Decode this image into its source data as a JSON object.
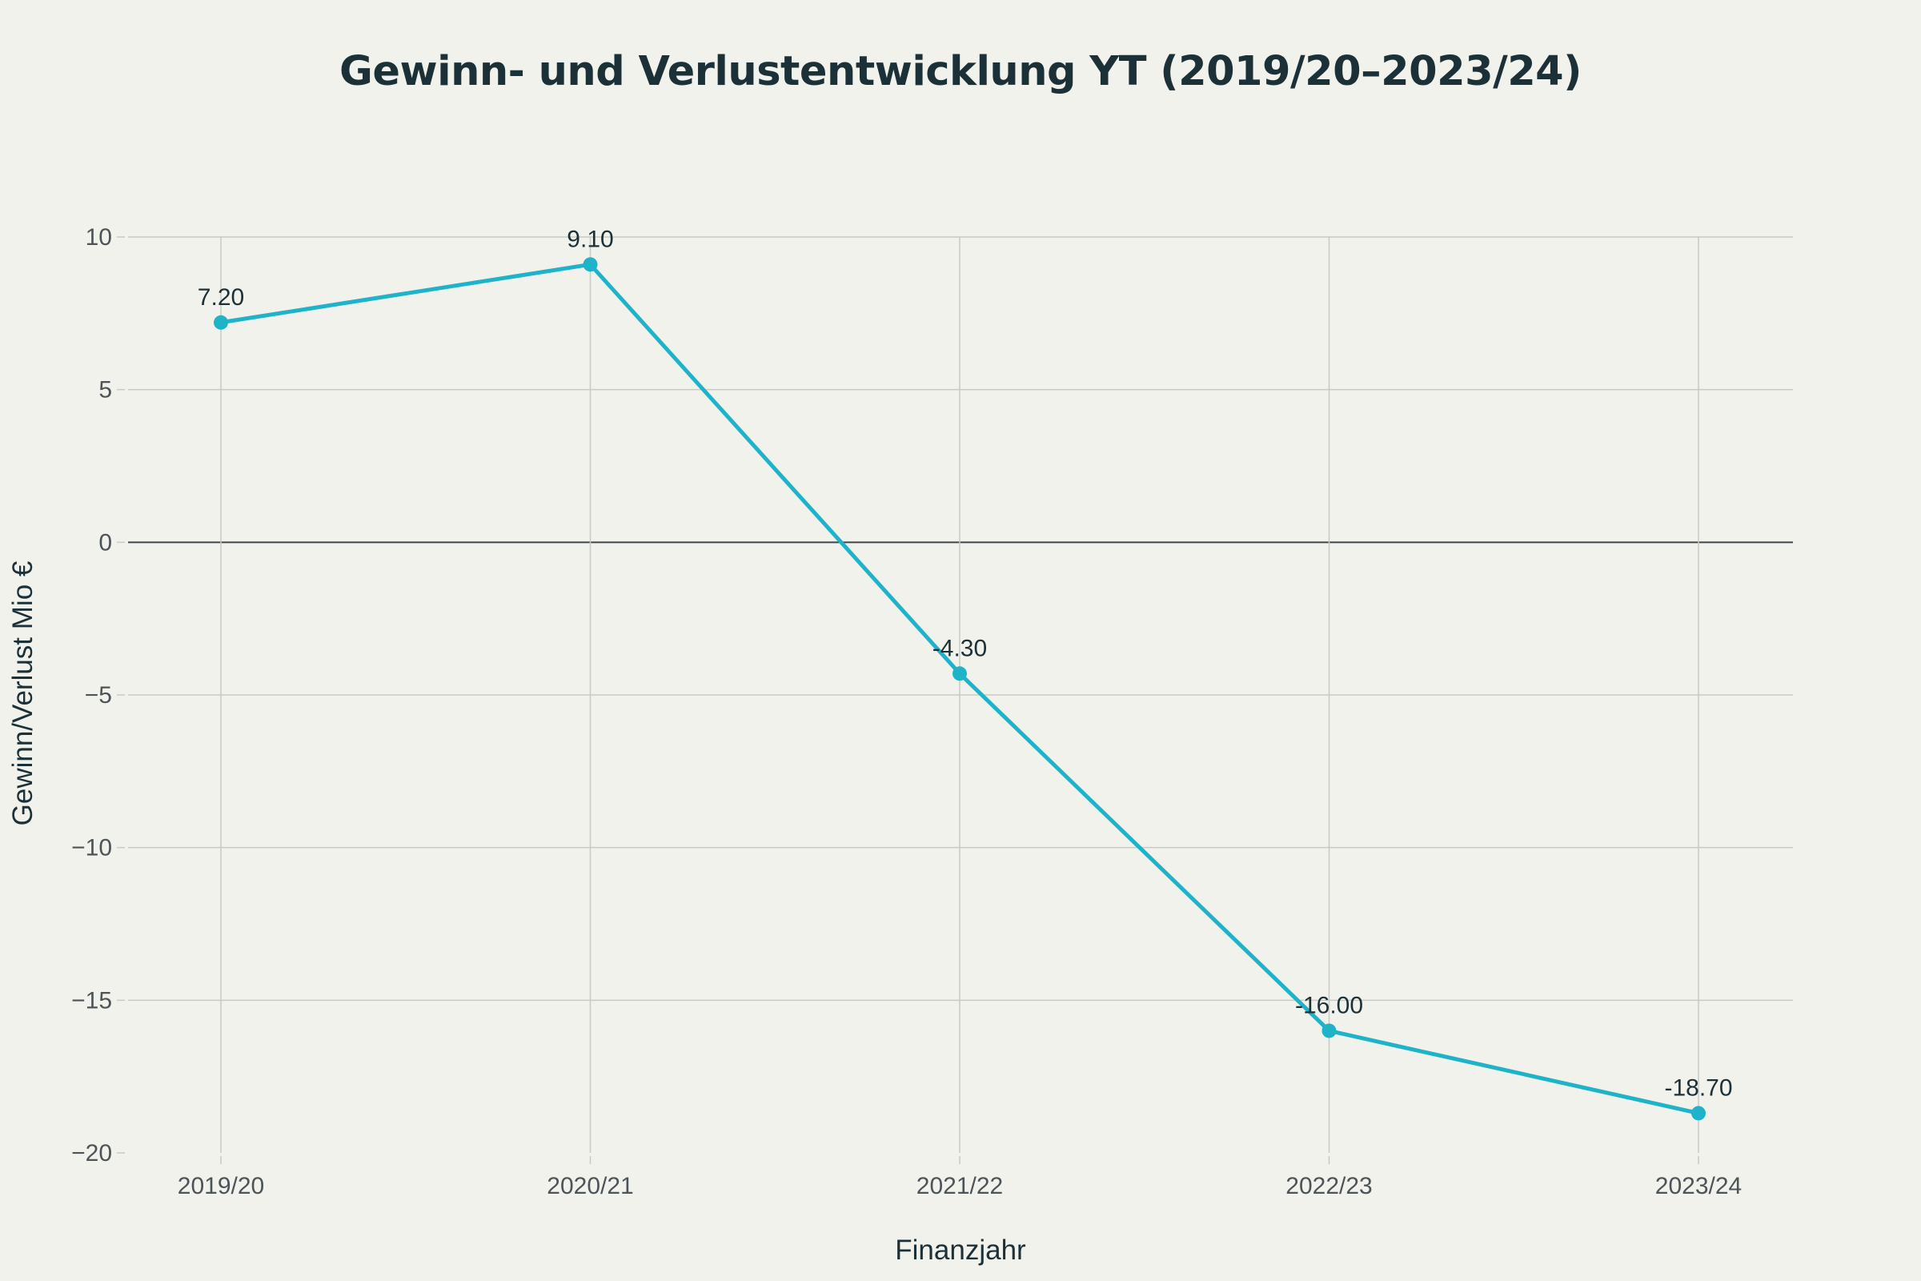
{
  "chart_data": {
    "type": "line",
    "title": "Gewinn- und Verlustentwicklung YT (2019/20–2023/24)",
    "xlabel": "Finanzjahr",
    "ylabel": "Gewinn/Verlust Mio €",
    "categories": [
      "2019/20",
      "2020/21",
      "2021/22",
      "2022/23",
      "2023/24"
    ],
    "series": [
      {
        "values": [
          7.2,
          9.1,
          -4.3,
          -16.0,
          -18.7
        ],
        "data_labels": [
          "7.20",
          "9.10",
          "-4.30",
          "-16.00",
          "-18.70"
        ]
      }
    ],
    "ylim": [
      -20,
      10
    ],
    "yticks": [
      10,
      5,
      0,
      -5,
      -10,
      -15,
      -20
    ],
    "ytick_labels": [
      "10",
      "5",
      "0",
      "−5",
      "−10",
      "−15",
      "−20"
    ],
    "grid": true,
    "colors": {
      "line": "#1fb3c9",
      "background": "#f2f2ed",
      "text": "#1c3038"
    }
  }
}
